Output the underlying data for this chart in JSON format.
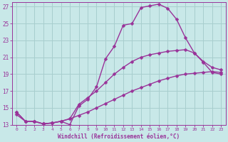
{
  "xlabel": "Windchill (Refroidissement éolien,°C)",
  "bg_color": "#c8e8e8",
  "grid_color": "#a8cece",
  "line_color": "#993399",
  "marker": "D",
  "markersize": 2.5,
  "linewidth": 1.0,
  "xlim": [
    -0.5,
    23.5
  ],
  "ylim": [
    13,
    27.5
  ],
  "yticks": [
    13,
    15,
    17,
    19,
    21,
    23,
    25,
    27
  ],
  "xticks": [
    0,
    1,
    2,
    3,
    4,
    5,
    6,
    7,
    8,
    9,
    10,
    11,
    12,
    13,
    14,
    15,
    16,
    17,
    18,
    19,
    20,
    21,
    22,
    23
  ],
  "line1_x": [
    0,
    1,
    2,
    3,
    4,
    5,
    6,
    7,
    8,
    9,
    10,
    11,
    12,
    13,
    14,
    15,
    16,
    17,
    18,
    19,
    20,
    21,
    22,
    23
  ],
  "line1_y": [
    14.5,
    13.4,
    13.4,
    13.1,
    13.2,
    13.4,
    13.0,
    15.2,
    16.0,
    17.5,
    20.8,
    22.3,
    24.8,
    25.0,
    26.9,
    27.1,
    27.3,
    26.8,
    25.5,
    23.3,
    21.5,
    20.4,
    19.2,
    19.0
  ],
  "line2_x": [
    0,
    1,
    2,
    3,
    4,
    5,
    6,
    7,
    8,
    9,
    10,
    11,
    12,
    13,
    14,
    15,
    16,
    17,
    18,
    19,
    20,
    21,
    22,
    23
  ],
  "line2_y": [
    14.5,
    13.4,
    13.4,
    13.1,
    13.2,
    13.4,
    13.7,
    15.4,
    16.2,
    17.0,
    18.0,
    19.0,
    19.8,
    20.5,
    21.0,
    21.3,
    21.5,
    21.7,
    21.8,
    21.9,
    21.5,
    20.5,
    19.8,
    19.5
  ],
  "line3_x": [
    0,
    1,
    2,
    3,
    4,
    5,
    6,
    7,
    8,
    9,
    10,
    11,
    12,
    13,
    14,
    15,
    16,
    17,
    18,
    19,
    20,
    21,
    22,
    23
  ],
  "line3_y": [
    14.2,
    13.4,
    13.4,
    13.1,
    13.2,
    13.4,
    13.7,
    14.1,
    14.5,
    15.0,
    15.5,
    16.0,
    16.5,
    17.0,
    17.4,
    17.8,
    18.2,
    18.5,
    18.8,
    19.0,
    19.1,
    19.2,
    19.3,
    19.2
  ]
}
